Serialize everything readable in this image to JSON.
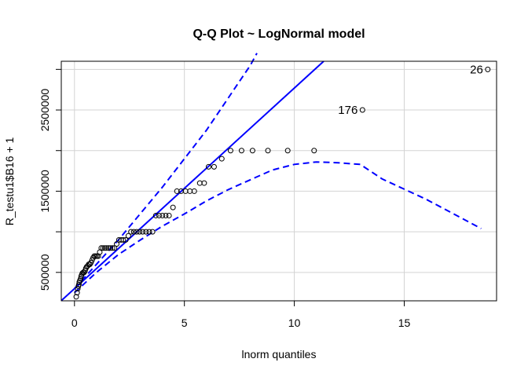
{
  "chart_data": {
    "type": "scatter",
    "title": "Q-Q Plot ~ LogNormal model",
    "xlabel": "lnorm quantiles",
    "ylabel": "R_testu1$B16 + 1",
    "xlim": [
      -0.6,
      19.2
    ],
    "ylim": [
      150000,
      3100000
    ],
    "xticks": [
      0,
      5,
      10,
      15
    ],
    "yticks": [
      500000,
      1000000,
      1500000,
      2000000,
      2500000,
      3000000
    ],
    "ytick_labels": [
      "500000",
      "",
      "1500000",
      "",
      "2500000",
      ""
    ],
    "grid": true,
    "colors": {
      "points": "#000000",
      "reference": "#0000ff",
      "envelope": "#0000ff",
      "grid": "#d3d3d3"
    },
    "points": [
      [
        0.08,
        200000
      ],
      [
        0.12,
        250000
      ],
      [
        0.15,
        300000
      ],
      [
        0.18,
        330000
      ],
      [
        0.2,
        350000
      ],
      [
        0.22,
        380000
      ],
      [
        0.25,
        400000
      ],
      [
        0.28,
        420000
      ],
      [
        0.3,
        450000
      ],
      [
        0.33,
        470000
      ],
      [
        0.36,
        490000
      ],
      [
        0.4,
        500000
      ],
      [
        0.44,
        500000
      ],
      [
        0.48,
        520000
      ],
      [
        0.52,
        550000
      ],
      [
        0.56,
        570000
      ],
      [
        0.6,
        580000
      ],
      [
        0.65,
        600000
      ],
      [
        0.7,
        600000
      ],
      [
        0.75,
        620000
      ],
      [
        0.8,
        650000
      ],
      [
        0.85,
        680000
      ],
      [
        0.9,
        700000
      ],
      [
        0.96,
        700000
      ],
      [
        1.02,
        700000
      ],
      [
        1.08,
        700000
      ],
      [
        1.15,
        750000
      ],
      [
        1.22,
        800000
      ],
      [
        1.3,
        800000
      ],
      [
        1.38,
        800000
      ],
      [
        1.46,
        800000
      ],
      [
        1.55,
        800000
      ],
      [
        1.64,
        800000
      ],
      [
        1.73,
        800000
      ],
      [
        1.82,
        800000
      ],
      [
        1.92,
        850000
      ],
      [
        2.02,
        900000
      ],
      [
        2.12,
        900000
      ],
      [
        2.22,
        900000
      ],
      [
        2.33,
        900000
      ],
      [
        2.45,
        950000
      ],
      [
        2.57,
        1000000
      ],
      [
        2.7,
        1000000
      ],
      [
        2.83,
        1000000
      ],
      [
        2.96,
        1000000
      ],
      [
        3.1,
        1000000
      ],
      [
        3.25,
        1000000
      ],
      [
        3.4,
        1000000
      ],
      [
        3.55,
        1000000
      ],
      [
        3.7,
        1200000
      ],
      [
        3.85,
        1200000
      ],
      [
        4.0,
        1200000
      ],
      [
        4.15,
        1200000
      ],
      [
        4.3,
        1200000
      ],
      [
        4.48,
        1300000
      ],
      [
        4.66,
        1500000
      ],
      [
        4.85,
        1500000
      ],
      [
        5.05,
        1500000
      ],
      [
        5.25,
        1500000
      ],
      [
        5.45,
        1500000
      ],
      [
        5.7,
        1600000
      ],
      [
        5.9,
        1600000
      ],
      [
        6.1,
        1800000
      ],
      [
        6.35,
        1800000
      ],
      [
        6.7,
        1900000
      ],
      [
        7.1,
        2000000
      ],
      [
        7.6,
        2000000
      ],
      [
        8.1,
        2000000
      ],
      [
        8.8,
        2000000
      ],
      [
        9.7,
        2000000
      ],
      [
        10.9,
        2000000
      ],
      [
        13.1,
        2500000
      ],
      [
        18.8,
        3000000
      ]
    ],
    "annotations": [
      {
        "label": "176",
        "x": 13.1,
        "y": 2500000
      },
      {
        "label": "26",
        "x": 18.8,
        "y": 3000000
      }
    ],
    "reference_line": {
      "intercept": 300000,
      "slope": 247000
    },
    "upper_band": [
      [
        0.0,
        300000
      ],
      [
        2.0,
        900000
      ],
      [
        4.0,
        1550000
      ],
      [
        6.0,
        2250000
      ],
      [
        8.0,
        3050000
      ],
      [
        8.3,
        3200000
      ]
    ],
    "lower_band": [
      [
        0.0,
        250000
      ],
      [
        1.0,
        500000
      ],
      [
        2.0,
        720000
      ],
      [
        3.0,
        900000
      ],
      [
        4.0,
        1070000
      ],
      [
        5.0,
        1220000
      ],
      [
        6.0,
        1380000
      ],
      [
        7.0,
        1520000
      ],
      [
        8.0,
        1640000
      ],
      [
        9.0,
        1760000
      ],
      [
        10.0,
        1830000
      ],
      [
        11.0,
        1860000
      ],
      [
        12.0,
        1850000
      ],
      [
        13.0,
        1830000
      ],
      [
        14.0,
        1650000
      ],
      [
        16.0,
        1400000
      ],
      [
        18.5,
        1040000
      ]
    ]
  }
}
